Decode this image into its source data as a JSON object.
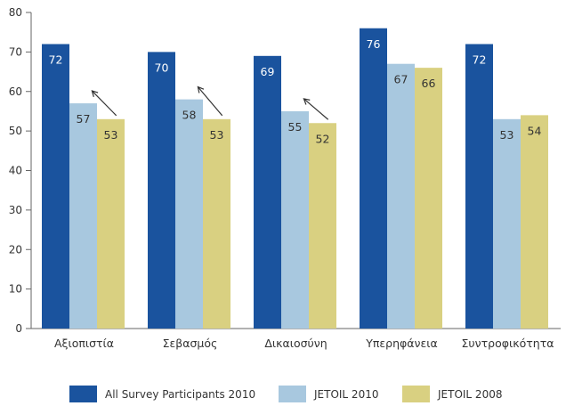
{
  "chart_data": {
    "type": "bar",
    "title": "",
    "xlabel": "",
    "ylabel": "",
    "ylim": [
      0,
      80
    ],
    "yticks": [
      0,
      10,
      20,
      30,
      40,
      50,
      60,
      70,
      80
    ],
    "grid": false,
    "legend_position": "bottom",
    "categories": [
      "Αξιοπιστία",
      "Σεβασμός",
      "Δικαιοσύνη",
      "Υπερηφάνεια",
      "Συντροφικότητα"
    ],
    "series": [
      {
        "name": "All Survey Participants 2010",
        "color": "#1a539e",
        "label_color": "#ffffff",
        "values": [
          72,
          70,
          69,
          76,
          72
        ]
      },
      {
        "name": "JETOIL 2010",
        "color": "#a8c8df",
        "label_color": "#333333",
        "values": [
          57,
          58,
          55,
          67,
          53
        ]
      },
      {
        "name": "JETOIL 2008",
        "color": "#d9d081",
        "label_color": "#333333",
        "values": [
          53,
          53,
          52,
          66,
          54
        ]
      }
    ],
    "trend_arrows": [
      true,
      true,
      true,
      false,
      false
    ],
    "arrow_color": "#333333"
  }
}
